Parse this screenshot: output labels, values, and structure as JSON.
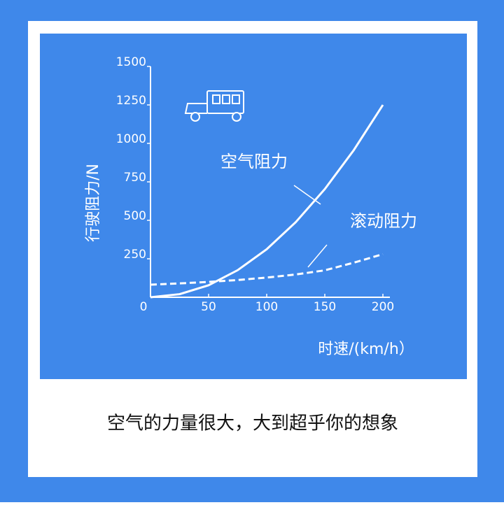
{
  "chart_data": {
    "type": "line",
    "caption": "空气的力量很大，大到超乎你的想象",
    "x_label": "时速/(km/h）",
    "y_label": "行驶阻力/N",
    "x": [
      0,
      25,
      50,
      75,
      100,
      125,
      150,
      175,
      200
    ],
    "series": [
      {
        "name": "空气阻力",
        "color": "#ffffff",
        "dash": false,
        "values": [
          0,
          20,
          78,
          176,
          312,
          488,
          703,
          957,
          1250
        ]
      },
      {
        "name": "滚动阻力",
        "color": "#ffffff",
        "dash": true,
        "values": [
          82,
          90,
          100,
          112,
          128,
          148,
          175,
          225,
          280
        ]
      }
    ],
    "xlim": [
      0,
      200
    ],
    "xticks": [
      0,
      50,
      100,
      150,
      200
    ],
    "ylim": [
      0,
      1500
    ],
    "yticks": [
      250,
      500,
      750,
      1000,
      1250,
      1500
    ]
  }
}
